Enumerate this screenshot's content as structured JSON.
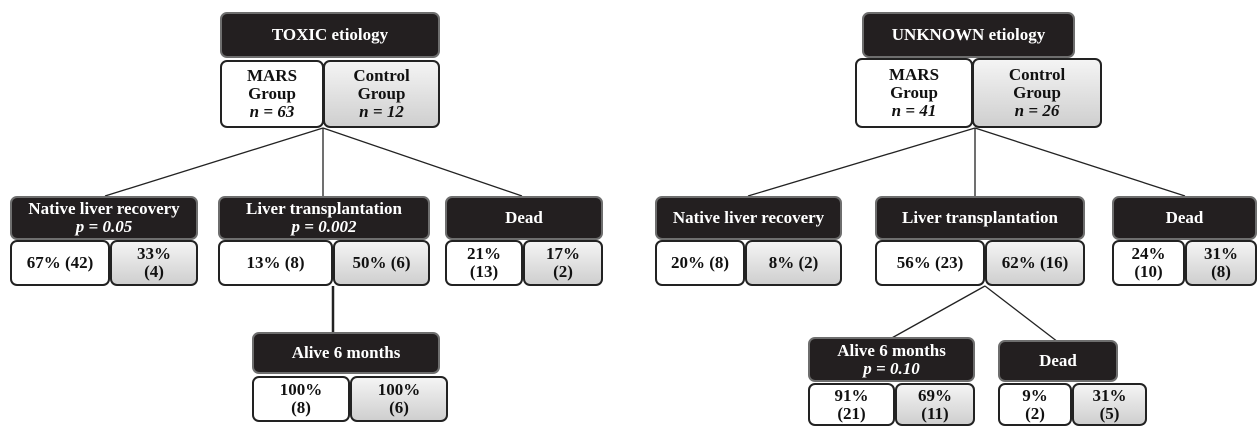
{
  "trees": [
    {
      "title": "TOXIC etiology",
      "groups": [
        {
          "lines": [
            "MARS",
            "Group",
            "n = 63"
          ]
        },
        {
          "lines": [
            "Control",
            "Group",
            "n = 12"
          ]
        }
      ],
      "outcomes": [
        {
          "lines": [
            "Native liver recovery",
            "p = 0.05"
          ],
          "cells": [
            [
              "67% (42)"
            ],
            [
              "33%",
              "(4)"
            ]
          ]
        },
        {
          "lines": [
            "Liver transplantation",
            "p = 0.002"
          ],
          "cells": [
            [
              "13% (8)"
            ],
            [
              "50% (6)"
            ]
          ]
        },
        {
          "lines": [
            "Dead"
          ],
          "cells": [
            [
              "21%",
              "(13)"
            ],
            [
              "17%",
              "(2)"
            ]
          ]
        },
        {
          "lines": [
            "Alive 6 months"
          ],
          "cells": [
            [
              "100%",
              "(8)"
            ],
            [
              "100%",
              "(6)"
            ]
          ]
        }
      ]
    },
    {
      "title": "UNKNOWN etiology",
      "groups": [
        {
          "lines": [
            "MARS",
            "Group",
            "n = 41"
          ]
        },
        {
          "lines": [
            "Control",
            "Group",
            "n = 26"
          ]
        }
      ],
      "outcomes": [
        {
          "lines": [
            "Native liver recovery"
          ],
          "cells": [
            [
              "20% (8)"
            ],
            [
              "8% (2)"
            ]
          ]
        },
        {
          "lines": [
            "Liver transplantation"
          ],
          "cells": [
            [
              "56% (23)"
            ],
            [
              "62% (16)"
            ]
          ]
        },
        {
          "lines": [
            "Dead"
          ],
          "cells": [
            [
              "24%",
              "(10)"
            ],
            [
              "31%",
              "(8)"
            ]
          ]
        },
        {
          "lines": [
            "Alive 6 months",
            "p = 0.10"
          ],
          "cells": [
            [
              "91%",
              "(21)"
            ],
            [
              "69%",
              "(11)"
            ]
          ]
        },
        {
          "lines": [
            "Dead"
          ],
          "cells": [
            [
              "9%",
              "(2)"
            ],
            [
              "31%",
              "(5)"
            ]
          ]
        }
      ]
    }
  ]
}
